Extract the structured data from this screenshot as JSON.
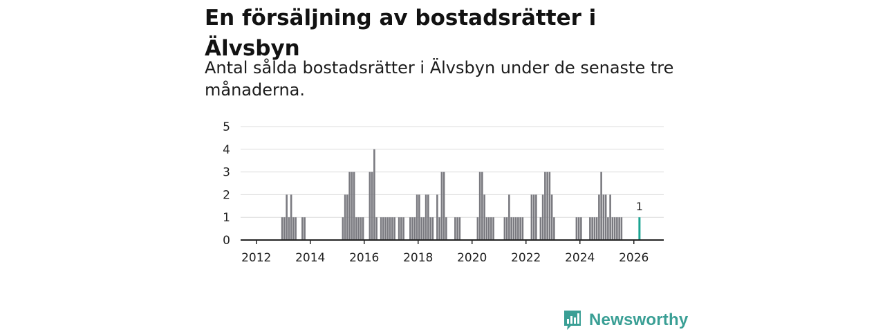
{
  "header": {
    "title": "En försäljning av bostadsrätter i Älvsbyn",
    "subtitle": "Antal sålda bostadsrätter i Älvsbyn under de senaste tre månaderna."
  },
  "brand": {
    "name": "Newsworthy",
    "icon": "bar-chart-speech-bubble-icon",
    "color": "#3a9f95"
  },
  "colors": {
    "bar": "#7a7a80",
    "highlight": "#1aa391",
    "grid": "#dcdcdc",
    "axis": "#222222"
  },
  "chart_data": {
    "type": "bar",
    "title": "",
    "xlabel": "",
    "ylabel": "",
    "x_unit": "month",
    "ylim": [
      0,
      5
    ],
    "yticks": [
      0,
      1,
      2,
      3,
      4,
      5
    ],
    "xticks": [
      "2012",
      "2014",
      "2016",
      "2018",
      "2020",
      "2022",
      "2024",
      "2026"
    ],
    "grid": "horizontal",
    "highlight": {
      "month": "2026-03",
      "value": 1,
      "label": "1"
    },
    "values": [
      {
        "month": "2012-12",
        "value": 1
      },
      {
        "month": "2013-01",
        "value": 1
      },
      {
        "month": "2013-02",
        "value": 2
      },
      {
        "month": "2013-03",
        "value": 1
      },
      {
        "month": "2013-04",
        "value": 2
      },
      {
        "month": "2013-05",
        "value": 1
      },
      {
        "month": "2013-06",
        "value": 1
      },
      {
        "month": "2013-09",
        "value": 1
      },
      {
        "month": "2013-10",
        "value": 1
      },
      {
        "month": "2015-03",
        "value": 1
      },
      {
        "month": "2015-04",
        "value": 2
      },
      {
        "month": "2015-05",
        "value": 2
      },
      {
        "month": "2015-06",
        "value": 3
      },
      {
        "month": "2015-07",
        "value": 3
      },
      {
        "month": "2015-08",
        "value": 3
      },
      {
        "month": "2015-09",
        "value": 1
      },
      {
        "month": "2015-10",
        "value": 1
      },
      {
        "month": "2015-11",
        "value": 1
      },
      {
        "month": "2015-12",
        "value": 1
      },
      {
        "month": "2016-03",
        "value": 3
      },
      {
        "month": "2016-04",
        "value": 3
      },
      {
        "month": "2016-05",
        "value": 4
      },
      {
        "month": "2016-06",
        "value": 1
      },
      {
        "month": "2016-08",
        "value": 1
      },
      {
        "month": "2016-09",
        "value": 1
      },
      {
        "month": "2016-10",
        "value": 1
      },
      {
        "month": "2016-11",
        "value": 1
      },
      {
        "month": "2016-12",
        "value": 1
      },
      {
        "month": "2017-01",
        "value": 1
      },
      {
        "month": "2017-02",
        "value": 1
      },
      {
        "month": "2017-04",
        "value": 1
      },
      {
        "month": "2017-05",
        "value": 1
      },
      {
        "month": "2017-06",
        "value": 1
      },
      {
        "month": "2017-09",
        "value": 1
      },
      {
        "month": "2017-10",
        "value": 1
      },
      {
        "month": "2017-11",
        "value": 1
      },
      {
        "month": "2017-12",
        "value": 2
      },
      {
        "month": "2018-01",
        "value": 2
      },
      {
        "month": "2018-02",
        "value": 1
      },
      {
        "month": "2018-03",
        "value": 1
      },
      {
        "month": "2018-04",
        "value": 2
      },
      {
        "month": "2018-05",
        "value": 2
      },
      {
        "month": "2018-06",
        "value": 1
      },
      {
        "month": "2018-07",
        "value": 1
      },
      {
        "month": "2018-09",
        "value": 2
      },
      {
        "month": "2018-10",
        "value": 1
      },
      {
        "month": "2018-11",
        "value": 3
      },
      {
        "month": "2018-12",
        "value": 3
      },
      {
        "month": "2019-01",
        "value": 1
      },
      {
        "month": "2019-05",
        "value": 1
      },
      {
        "month": "2019-06",
        "value": 1
      },
      {
        "month": "2019-07",
        "value": 1
      },
      {
        "month": "2020-03",
        "value": 1
      },
      {
        "month": "2020-04",
        "value": 3
      },
      {
        "month": "2020-05",
        "value": 3
      },
      {
        "month": "2020-06",
        "value": 2
      },
      {
        "month": "2020-07",
        "value": 1
      },
      {
        "month": "2020-08",
        "value": 1
      },
      {
        "month": "2020-09",
        "value": 1
      },
      {
        "month": "2020-10",
        "value": 1
      },
      {
        "month": "2021-03",
        "value": 1
      },
      {
        "month": "2021-04",
        "value": 1
      },
      {
        "month": "2021-05",
        "value": 2
      },
      {
        "month": "2021-06",
        "value": 1
      },
      {
        "month": "2021-07",
        "value": 1
      },
      {
        "month": "2021-08",
        "value": 1
      },
      {
        "month": "2021-09",
        "value": 1
      },
      {
        "month": "2021-10",
        "value": 1
      },
      {
        "month": "2021-11",
        "value": 1
      },
      {
        "month": "2022-03",
        "value": 2
      },
      {
        "month": "2022-04",
        "value": 2
      },
      {
        "month": "2022-05",
        "value": 2
      },
      {
        "month": "2022-07",
        "value": 1
      },
      {
        "month": "2022-08",
        "value": 2
      },
      {
        "month": "2022-09",
        "value": 3
      },
      {
        "month": "2022-10",
        "value": 3
      },
      {
        "month": "2022-11",
        "value": 3
      },
      {
        "month": "2022-12",
        "value": 2
      },
      {
        "month": "2023-01",
        "value": 1
      },
      {
        "month": "2023-11",
        "value": 1
      },
      {
        "month": "2023-12",
        "value": 1
      },
      {
        "month": "2024-01",
        "value": 1
      },
      {
        "month": "2024-05",
        "value": 1
      },
      {
        "month": "2024-06",
        "value": 1
      },
      {
        "month": "2024-07",
        "value": 1
      },
      {
        "month": "2024-08",
        "value": 1
      },
      {
        "month": "2024-09",
        "value": 2
      },
      {
        "month": "2024-10",
        "value": 3
      },
      {
        "month": "2024-11",
        "value": 2
      },
      {
        "month": "2024-12",
        "value": 2
      },
      {
        "month": "2025-01",
        "value": 1
      },
      {
        "month": "2025-02",
        "value": 2
      },
      {
        "month": "2025-03",
        "value": 1
      },
      {
        "month": "2025-04",
        "value": 1
      },
      {
        "month": "2025-05",
        "value": 1
      },
      {
        "month": "2025-06",
        "value": 1
      },
      {
        "month": "2025-07",
        "value": 1
      }
    ]
  }
}
